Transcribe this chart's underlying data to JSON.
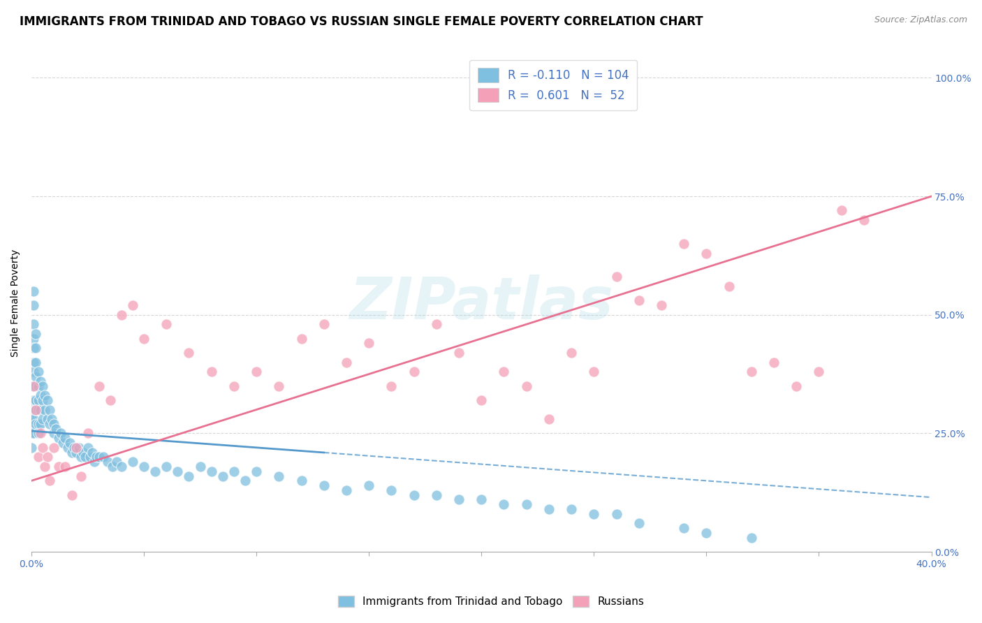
{
  "title": "IMMIGRANTS FROM TRINIDAD AND TOBAGO VS RUSSIAN SINGLE FEMALE POVERTY CORRELATION CHART",
  "source": "Source: ZipAtlas.com",
  "ylabel": "Single Female Poverty",
  "legend1_label": "Immigrants from Trinidad and Tobago",
  "legend2_label": "Russians",
  "R_blue": -0.11,
  "N_blue": 104,
  "R_pink": 0.601,
  "N_pink": 52,
  "blue_color": "#7fbfdf",
  "pink_color": "#f4a0b8",
  "blue_line_color": "#5599cc",
  "pink_line_color": "#e87090",
  "background_color": "#ffffff",
  "grid_color": "#cccccc",
  "title_fontsize": 12,
  "axis_label_fontsize": 10,
  "tick_fontsize": 10,
  "watermark_text": "ZIPatlas",
  "xlim": [
    0.0,
    0.4
  ],
  "ylim": [
    0.0,
    1.05
  ],
  "yticks": [
    0.0,
    0.25,
    0.5,
    0.75,
    1.0
  ],
  "ytick_labels": [
    "0.0%",
    "25.0%",
    "50.0%",
    "75.0%",
    "100.0%"
  ],
  "xtick_left_label": "0.0%",
  "xtick_right_label": "40.0%",
  "blue_x": [
    0.0,
    0.0,
    0.0,
    0.0,
    0.0,
    0.001,
    0.001,
    0.001,
    0.001,
    0.001,
    0.001,
    0.001,
    0.001,
    0.001,
    0.001,
    0.001,
    0.001,
    0.002,
    0.002,
    0.002,
    0.002,
    0.002,
    0.002,
    0.002,
    0.002,
    0.003,
    0.003,
    0.003,
    0.003,
    0.003,
    0.003,
    0.004,
    0.004,
    0.004,
    0.004,
    0.005,
    0.005,
    0.005,
    0.006,
    0.006,
    0.007,
    0.007,
    0.008,
    0.008,
    0.009,
    0.01,
    0.01,
    0.011,
    0.012,
    0.013,
    0.014,
    0.015,
    0.016,
    0.017,
    0.018,
    0.019,
    0.02,
    0.021,
    0.022,
    0.023,
    0.024,
    0.025,
    0.026,
    0.027,
    0.028,
    0.029,
    0.03,
    0.032,
    0.034,
    0.036,
    0.038,
    0.04,
    0.045,
    0.05,
    0.055,
    0.06,
    0.065,
    0.07,
    0.075,
    0.08,
    0.085,
    0.09,
    0.095,
    0.1,
    0.11,
    0.12,
    0.13,
    0.14,
    0.15,
    0.16,
    0.17,
    0.18,
    0.19,
    0.2,
    0.21,
    0.22,
    0.23,
    0.24,
    0.25,
    0.26,
    0.27,
    0.29,
    0.3,
    0.32
  ],
  "blue_y": [
    0.22,
    0.25,
    0.27,
    0.28,
    0.3,
    0.55,
    0.52,
    0.48,
    0.45,
    0.43,
    0.4,
    0.38,
    0.35,
    0.32,
    0.3,
    0.28,
    0.25,
    0.46,
    0.43,
    0.4,
    0.37,
    0.35,
    0.32,
    0.3,
    0.27,
    0.38,
    0.35,
    0.32,
    0.3,
    0.27,
    0.25,
    0.36,
    0.33,
    0.3,
    0.27,
    0.35,
    0.32,
    0.28,
    0.33,
    0.3,
    0.32,
    0.28,
    0.3,
    0.27,
    0.28,
    0.27,
    0.25,
    0.26,
    0.24,
    0.25,
    0.23,
    0.24,
    0.22,
    0.23,
    0.21,
    0.22,
    0.21,
    0.22,
    0.2,
    0.21,
    0.2,
    0.22,
    0.2,
    0.21,
    0.19,
    0.2,
    0.2,
    0.2,
    0.19,
    0.18,
    0.19,
    0.18,
    0.19,
    0.18,
    0.17,
    0.18,
    0.17,
    0.16,
    0.18,
    0.17,
    0.16,
    0.17,
    0.15,
    0.17,
    0.16,
    0.15,
    0.14,
    0.13,
    0.14,
    0.13,
    0.12,
    0.12,
    0.11,
    0.11,
    0.1,
    0.1,
    0.09,
    0.09,
    0.08,
    0.08,
    0.06,
    0.05,
    0.04,
    0.03
  ],
  "pink_x": [
    0.001,
    0.002,
    0.003,
    0.004,
    0.005,
    0.006,
    0.007,
    0.008,
    0.01,
    0.012,
    0.015,
    0.018,
    0.02,
    0.022,
    0.025,
    0.03,
    0.035,
    0.04,
    0.045,
    0.05,
    0.06,
    0.07,
    0.08,
    0.09,
    0.1,
    0.11,
    0.12,
    0.13,
    0.14,
    0.15,
    0.16,
    0.17,
    0.18,
    0.19,
    0.2,
    0.21,
    0.22,
    0.23,
    0.24,
    0.25,
    0.26,
    0.27,
    0.28,
    0.29,
    0.3,
    0.31,
    0.32,
    0.33,
    0.34,
    0.35,
    0.36,
    0.37
  ],
  "pink_y": [
    0.35,
    0.3,
    0.2,
    0.25,
    0.22,
    0.18,
    0.2,
    0.15,
    0.22,
    0.18,
    0.18,
    0.12,
    0.22,
    0.16,
    0.25,
    0.35,
    0.32,
    0.5,
    0.52,
    0.45,
    0.48,
    0.42,
    0.38,
    0.35,
    0.38,
    0.35,
    0.45,
    0.48,
    0.4,
    0.44,
    0.35,
    0.38,
    0.48,
    0.42,
    0.32,
    0.38,
    0.35,
    0.28,
    0.42,
    0.38,
    0.58,
    0.53,
    0.52,
    0.65,
    0.63,
    0.56,
    0.38,
    0.4,
    0.35,
    0.38,
    0.72,
    0.7
  ]
}
